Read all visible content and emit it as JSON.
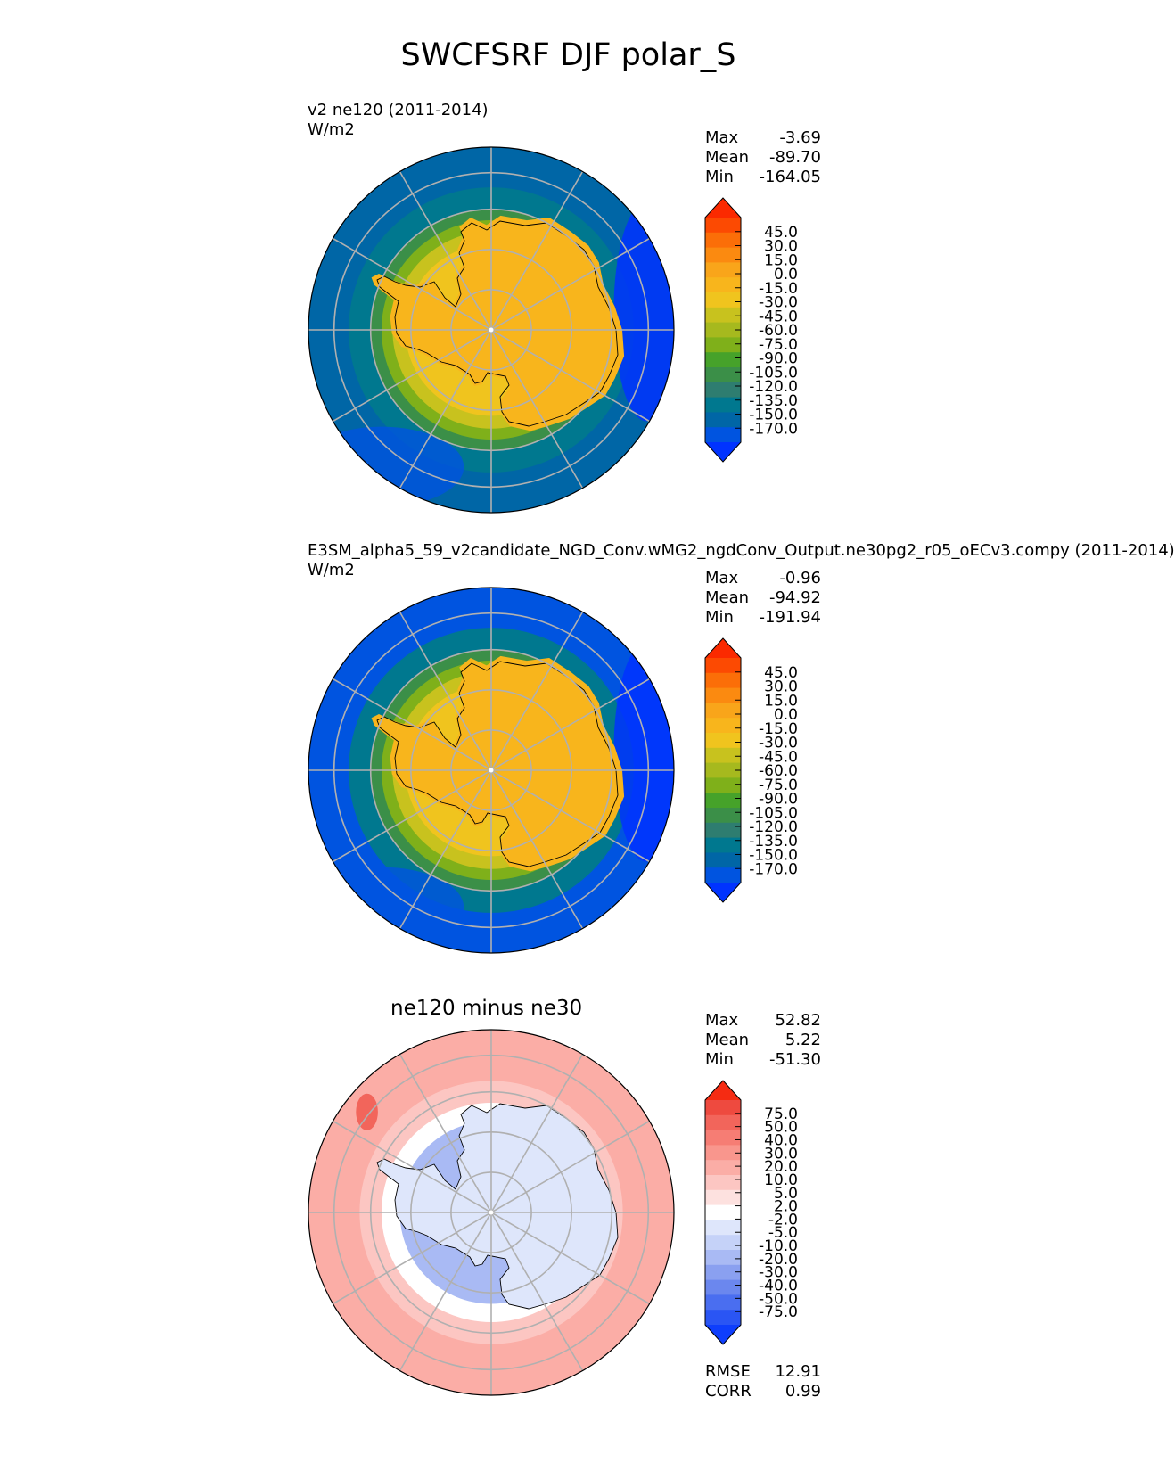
{
  "title": "SWCFSRF DJF polar_S",
  "colors": {
    "main_scale": [
      "#0033ff",
      "#0054e0",
      "#0066a6",
      "#00788f",
      "#2e7d70",
      "#3b8f48",
      "#46a22a",
      "#7fb01a",
      "#a6b91e",
      "#c8c21e",
      "#f0c41e",
      "#f8b51c",
      "#f9a51a",
      "#fb8a10",
      "#fb6e08",
      "#fc4a02",
      "#fb2a00"
    ],
    "diff_scale": [
      "#0e3efc",
      "#2a55f4",
      "#4a6ef0",
      "#6b87ee",
      "#8aa0f0",
      "#a9baf4",
      "#c5d2f8",
      "#dee6fb",
      "#ffffff",
      "#fde1df",
      "#fcc6c2",
      "#fbada6",
      "#f9968d",
      "#f67d74",
      "#f2655b",
      "#ee4a3f",
      "#f52b12"
    ],
    "land": "#f9a51a",
    "ocean": "#0066a6"
  },
  "panels": [
    {
      "title": "v2 ne120 (2011-2014)",
      "units": "W/m2",
      "stats": {
        "max_label": "Max",
        "max": "-3.69",
        "mean_label": "Mean",
        "mean": "-89.70",
        "min_label": "Min",
        "min": "-164.05"
      }
    },
    {
      "title": "E3SM_alpha5_59_v2candidate_NGD_Conv.wMG2_ngdConv_Output.ne30pg2_r05_oECv3.compy (2011-2014)",
      "units": "W/m2",
      "stats": {
        "max_label": "Max",
        "max": "-0.96",
        "mean_label": "Mean",
        "mean": "-94.92",
        "min_label": "Min",
        "min": "-191.94"
      }
    },
    {
      "title": "ne120 minus ne30",
      "stats": {
        "max_label": "Max",
        "max": "52.82",
        "mean_label": "Mean",
        "mean": "5.22",
        "min_label": "Min",
        "min": "-51.30"
      },
      "rmse_label": "RMSE",
      "rmse": "12.91",
      "corr_label": "CORR",
      "corr": "0.99"
    }
  ],
  "chart_data": [
    {
      "type": "heatmap",
      "projection": "south polar stereographic",
      "colorbar_ticks": [
        "45.0",
        "30.0",
        "15.0",
        "0.0",
        "-15.0",
        "-30.0",
        "-45.0",
        "-60.0",
        "-75.0",
        "-90.0",
        "-105.0",
        "-120.0",
        "-135.0",
        "-150.0",
        "-170.0"
      ],
      "colorbar_extend": "both"
    },
    {
      "type": "heatmap",
      "projection": "south polar stereographic",
      "colorbar_ticks": [
        "45.0",
        "30.0",
        "15.0",
        "0.0",
        "-15.0",
        "-30.0",
        "-45.0",
        "-60.0",
        "-75.0",
        "-90.0",
        "-105.0",
        "-120.0",
        "-135.0",
        "-150.0",
        "-170.0"
      ],
      "colorbar_extend": "both"
    },
    {
      "type": "heatmap",
      "projection": "south polar stereographic",
      "colorbar_ticks": [
        "75.0",
        "50.0",
        "40.0",
        "30.0",
        "20.0",
        "10.0",
        "5.0",
        "2.0",
        "-2.0",
        "-5.0",
        "-10.0",
        "-20.0",
        "-30.0",
        "-40.0",
        "-50.0",
        "-75.0"
      ],
      "colorbar_extend": "both"
    }
  ]
}
